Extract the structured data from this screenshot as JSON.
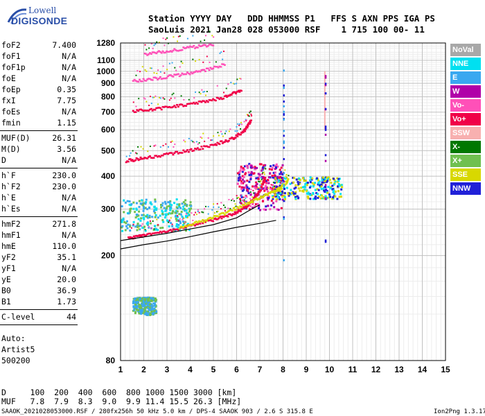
{
  "logo": {
    "top": "Lowell",
    "main": "DIGISONDE"
  },
  "header": {
    "line1": "Station YYYY DAY   DDD HHMMSS P1   FFS S AXN PPS IGA PS",
    "line2": "SaoLuis 2021 Jan28 028 053000 RSF    1 715 100 00- 11"
  },
  "params_group1": [
    {
      "name": "foF2",
      "value": "7.400"
    },
    {
      "name": "foF1",
      "value": "N/A"
    },
    {
      "name": "foF1p",
      "value": "N/A"
    },
    {
      "name": "foE",
      "value": "N/A"
    },
    {
      "name": "foEp",
      "value": "0.35"
    },
    {
      "name": "fxI",
      "value": "7.75"
    },
    {
      "name": "foEs",
      "value": "N/A"
    },
    {
      "name": "fmin",
      "value": "1.15"
    }
  ],
  "params_group2": [
    {
      "name": "MUF(D)",
      "value": "26.31"
    },
    {
      "name": "M(D)",
      "value": "3.56"
    },
    {
      "name": "D",
      "value": "N/A"
    }
  ],
  "params_group3": [
    {
      "name": "h`F",
      "value": "230.0"
    },
    {
      "name": "h`F2",
      "value": "230.0"
    },
    {
      "name": "h`E",
      "value": "N/A"
    },
    {
      "name": "h`Es",
      "value": "N/A"
    }
  ],
  "params_group4": [
    {
      "name": "hmF2",
      "value": "271.8"
    },
    {
      "name": "hmF1",
      "value": "N/A"
    },
    {
      "name": "hmE",
      "value": "110.0"
    },
    {
      "name": "yF2",
      "value": "35.1"
    },
    {
      "name": "yF1",
      "value": "N/A"
    },
    {
      "name": "yE",
      "value": "20.0"
    },
    {
      "name": "B0",
      "value": "36.9"
    },
    {
      "name": "B1",
      "value": "1.73"
    }
  ],
  "params_group5": [
    {
      "name": "C-level",
      "value": "44"
    }
  ],
  "autoscale": {
    "line1": "Auto:",
    "line2": "Artist5",
    "line3": "500200"
  },
  "footer": {
    "d_row": "D     100  200  400  600  800 1000 1500 3000 [km]",
    "muf_row": "MUF   7.8  7.9  8.3  9.0  9.9 11.4 15.5 26.3 [MHz]",
    "bottom_left": "SAAOK_2021028053000.RSF / 280fx256h 50 kHz 5.0 km / DPS-4 SAAOK 903 / 2.6 S 315.8 E",
    "bottom_right": "Ion2Png 1.3.17"
  },
  "legend": [
    {
      "label": "NoVal",
      "color": "#a8a8a8"
    },
    {
      "label": "NNE",
      "color": "#00e0f0"
    },
    {
      "label": "E",
      "color": "#3aa8f0"
    },
    {
      "label": "W",
      "color": "#b000a8"
    },
    {
      "label": "Vo-",
      "color": "#ff50b8"
    },
    {
      "label": "Vo+",
      "color": "#f00048"
    },
    {
      "label": "SSW",
      "color": "#f8b0b0"
    },
    {
      "label": "X-",
      "color": "#007800"
    },
    {
      "label": "X+",
      "color": "#70c050"
    },
    {
      "label": "SSE",
      "color": "#d8d800"
    },
    {
      "label": "NNW",
      "color": "#2020d8"
    }
  ],
  "chart_data": {
    "type": "scatter",
    "xlabel": "",
    "ylabel": "",
    "xlim": [
      1,
      15
    ],
    "ylim": [
      80,
      1280
    ],
    "x_ticks": [
      1,
      2,
      3,
      4,
      5,
      6,
      7,
      8,
      9,
      10,
      11,
      12,
      13,
      14,
      15
    ],
    "y_ticks": [
      80,
      200,
      300,
      400,
      500,
      600,
      700,
      800,
      900,
      1000,
      1100,
      1280
    ],
    "y_scale": "log",
    "grid": true,
    "legend_position": "right",
    "traces": [
      {
        "name": "F2 O-trace",
        "color": "#f00048",
        "points": [
          [
            1.3,
            235
          ],
          [
            2,
            240
          ],
          [
            3,
            250
          ],
          [
            4,
            262
          ],
          [
            5,
            276
          ],
          [
            5.8,
            290
          ],
          [
            6.3,
            305
          ],
          [
            6.7,
            330
          ],
          [
            7.0,
            360
          ],
          [
            7.2,
            400
          ]
        ]
      },
      {
        "name": "F2 X-trace",
        "color": "#d8d800",
        "points": [
          [
            3.5,
            258
          ],
          [
            4.5,
            272
          ],
          [
            5.5,
            292
          ],
          [
            6.5,
            320
          ],
          [
            7.2,
            340
          ],
          [
            7.8,
            360
          ],
          [
            8.2,
            390
          ]
        ]
      },
      {
        "name": "2nd hop",
        "color": "#f00048",
        "points": [
          [
            1.2,
            460
          ],
          [
            2,
            472
          ],
          [
            3,
            488
          ],
          [
            4,
            505
          ],
          [
            5,
            530
          ],
          [
            5.8,
            560
          ],
          [
            6.3,
            600
          ],
          [
            6.6,
            660
          ]
        ]
      },
      {
        "name": "3rd hop",
        "color": "#f00048",
        "points": [
          [
            1.5,
            710
          ],
          [
            2.5,
            725
          ],
          [
            3.5,
            745
          ],
          [
            4.5,
            770
          ],
          [
            5.5,
            805
          ],
          [
            6.2,
            860
          ]
        ]
      },
      {
        "name": "4th hop",
        "color": "#ff50b8",
        "points": [
          [
            1.5,
            925
          ],
          [
            2.5,
            945
          ],
          [
            3.5,
            975
          ],
          [
            4.5,
            1010
          ],
          [
            5.5,
            1070
          ]
        ]
      },
      {
        "name": "5th hop",
        "color": "#ff50b8",
        "points": [
          [
            2,
            1170
          ],
          [
            3,
            1200
          ],
          [
            4,
            1240
          ],
          [
            5,
            1275
          ]
        ]
      },
      {
        "name": "Profile",
        "color": "#000000",
        "points": [
          [
            1.0,
            212
          ],
          [
            2,
            220
          ],
          [
            3,
            227
          ],
          [
            4,
            236
          ],
          [
            5,
            246
          ],
          [
            6,
            256
          ],
          [
            7,
            265
          ],
          [
            7.7,
            272
          ]
        ]
      },
      {
        "name": "Profile2",
        "color": "#000000",
        "points": [
          [
            1.0,
            228
          ],
          [
            3,
            243
          ],
          [
            5,
            262
          ],
          [
            6,
            278
          ],
          [
            6.5,
            295
          ],
          [
            7.0,
            312
          ]
        ]
      },
      {
        "name": "Es bar",
        "color": "#f8b0b0",
        "points": [
          [
            9.8,
            600
          ],
          [
            9.8,
            1000
          ]
        ]
      }
    ],
    "clouds": [
      {
        "x": [
          1,
          4
        ],
        "y": [
          250,
          330
        ],
        "colors": [
          "#3aa8f0",
          "#00e0f0",
          "#70c050"
        ]
      },
      {
        "x": [
          6,
          8
        ],
        "y": [
          300,
          450
        ],
        "colors": [
          "#ff50b8",
          "#f00048",
          "#b000a8",
          "#2020d8"
        ]
      },
      {
        "x": [
          7.5,
          10.5
        ],
        "y": [
          330,
          400
        ],
        "colors": [
          "#d8d800",
          "#00e0f0",
          "#2020d8"
        ]
      },
      {
        "x": [
          1.5,
          2.5
        ],
        "y": [
          120,
          140
        ],
        "colors": [
          "#3aa8f0",
          "#70c050"
        ]
      }
    ]
  }
}
